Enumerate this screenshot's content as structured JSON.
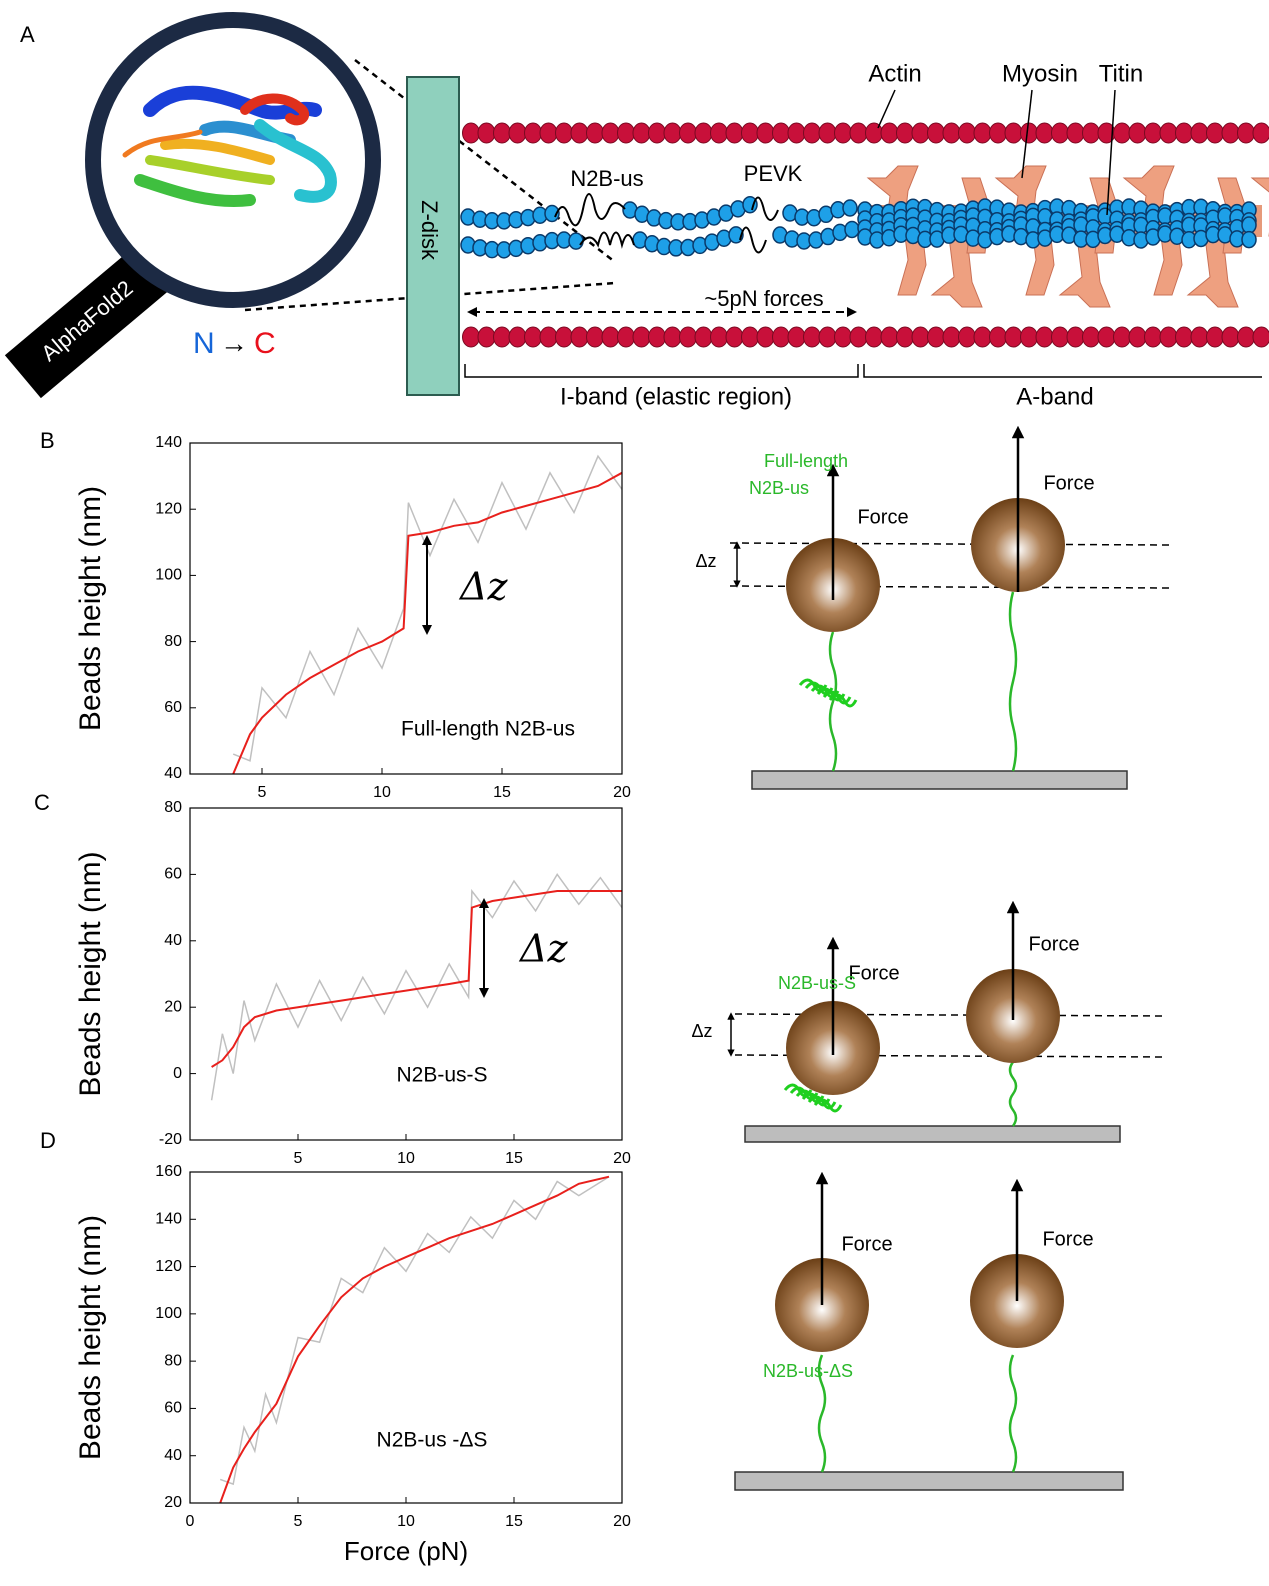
{
  "panel_labels": [
    "A",
    "B",
    "C",
    "D"
  ],
  "overview": {
    "magnifier_label": "AlphaFold2",
    "terminus_n": "N",
    "terminus_arrow": "→",
    "terminus_c": "C",
    "z_disk": "Z-disk",
    "actin": "Actin",
    "myosin": "Myosin",
    "titin": "Titin",
    "n2b_us": "N2B-us",
    "pevk": "PEVK",
    "force": "~5pN forces",
    "i_band": "I-band (elastic region)",
    "a_band": "A-band"
  },
  "chart_data": [
    {
      "type": "line",
      "y_label": "Beads height (nm)",
      "annotation": "Full-length N2B-us",
      "delta_label": "Δz",
      "x": [
        3.8,
        4.5,
        5,
        6,
        7,
        8,
        9,
        10,
        10.9,
        11.1,
        12,
        13,
        14,
        15,
        16,
        17,
        18,
        19,
        20
      ],
      "series": [
        {
          "color": "#c0c0c0",
          "values": [
            46,
            44,
            66,
            57,
            77,
            64,
            84,
            72,
            90,
            122,
            106,
            123,
            110,
            128,
            114,
            131,
            119,
            136,
            126
          ]
        },
        {
          "color": "#e8201c",
          "values": [
            40,
            52,
            57,
            64,
            69,
            73,
            77,
            80,
            84,
            112,
            113,
            115,
            116,
            119,
            121,
            123,
            125,
            127,
            131
          ]
        }
      ],
      "xlim": [
        2,
        20
      ],
      "ylim": [
        40,
        140
      ],
      "xticks": [
        5,
        10,
        15,
        20
      ],
      "yticks": [
        40,
        60,
        80,
        100,
        120,
        140
      ]
    },
    {
      "type": "line",
      "y_label": "Beads height (nm)",
      "annotation": "N2B-us-S",
      "delta_label": "Δz",
      "x": [
        1,
        1.5,
        2,
        2.5,
        3,
        4,
        5,
        6,
        7,
        8,
        9,
        10,
        11,
        12,
        12.9,
        13.05,
        14,
        15,
        16,
        17,
        18,
        19,
        20
      ],
      "series": [
        {
          "color": "#c0c0c0",
          "values": [
            -8,
            12,
            0,
            22,
            10,
            27,
            14,
            28,
            16,
            29,
            18,
            31,
            20,
            33,
            23,
            55,
            47,
            58,
            49,
            60,
            51,
            59,
            50
          ]
        },
        {
          "color": "#e8201c",
          "values": [
            2,
            4,
            8,
            14,
            17,
            19,
            20,
            21,
            22,
            23,
            24,
            25,
            26,
            27,
            28,
            50,
            52,
            53,
            54,
            55,
            55,
            55,
            55
          ]
        }
      ],
      "xlim": [
        0,
        20
      ],
      "ylim": [
        -20,
        80
      ],
      "xticks": [
        5,
        10,
        15,
        20
      ],
      "yticks": [
        -20,
        0,
        20,
        40,
        60,
        80
      ]
    },
    {
      "type": "line",
      "y_label": "Beads height (nm)",
      "x_label": "Force (pN)",
      "annotation": "N2B-us -ΔS",
      "x": [
        1.4,
        2,
        2.5,
        3,
        3.5,
        4,
        5,
        6,
        7,
        8,
        9,
        10,
        11,
        12,
        13,
        14,
        15,
        16,
        17,
        18,
        19.4
      ],
      "series": [
        {
          "color": "#c0c0c0",
          "values": [
            30,
            28,
            52,
            42,
            66,
            54,
            90,
            88,
            115,
            109,
            128,
            118,
            134,
            126,
            141,
            132,
            148,
            140,
            156,
            150,
            158
          ]
        },
        {
          "color": "#e8201c",
          "values": [
            20,
            35,
            43,
            50,
            56,
            62,
            82,
            95,
            107,
            115,
            120,
            124,
            128,
            132,
            135,
            138,
            142,
            146,
            150,
            155,
            158
          ]
        }
      ],
      "xlim": [
        0,
        20
      ],
      "ylim": [
        20,
        160
      ],
      "xticks": [
        0,
        5,
        10,
        15,
        20
      ],
      "yticks": [
        20,
        40,
        60,
        80,
        100,
        120,
        140,
        160
      ]
    }
  ],
  "schematics": [
    {
      "construct": [
        "Full-length",
        "N2B-us"
      ],
      "force_labels": [
        "Force",
        "Force"
      ],
      "delta": "Δz"
    },
    {
      "construct": [
        "N2B-us-S"
      ],
      "force_labels": [
        "Force",
        "Force"
      ],
      "delta": "Δz"
    },
    {
      "construct": [
        "N2B-us-ΔS"
      ],
      "force_labels": [
        "Force",
        "Force"
      ]
    }
  ]
}
